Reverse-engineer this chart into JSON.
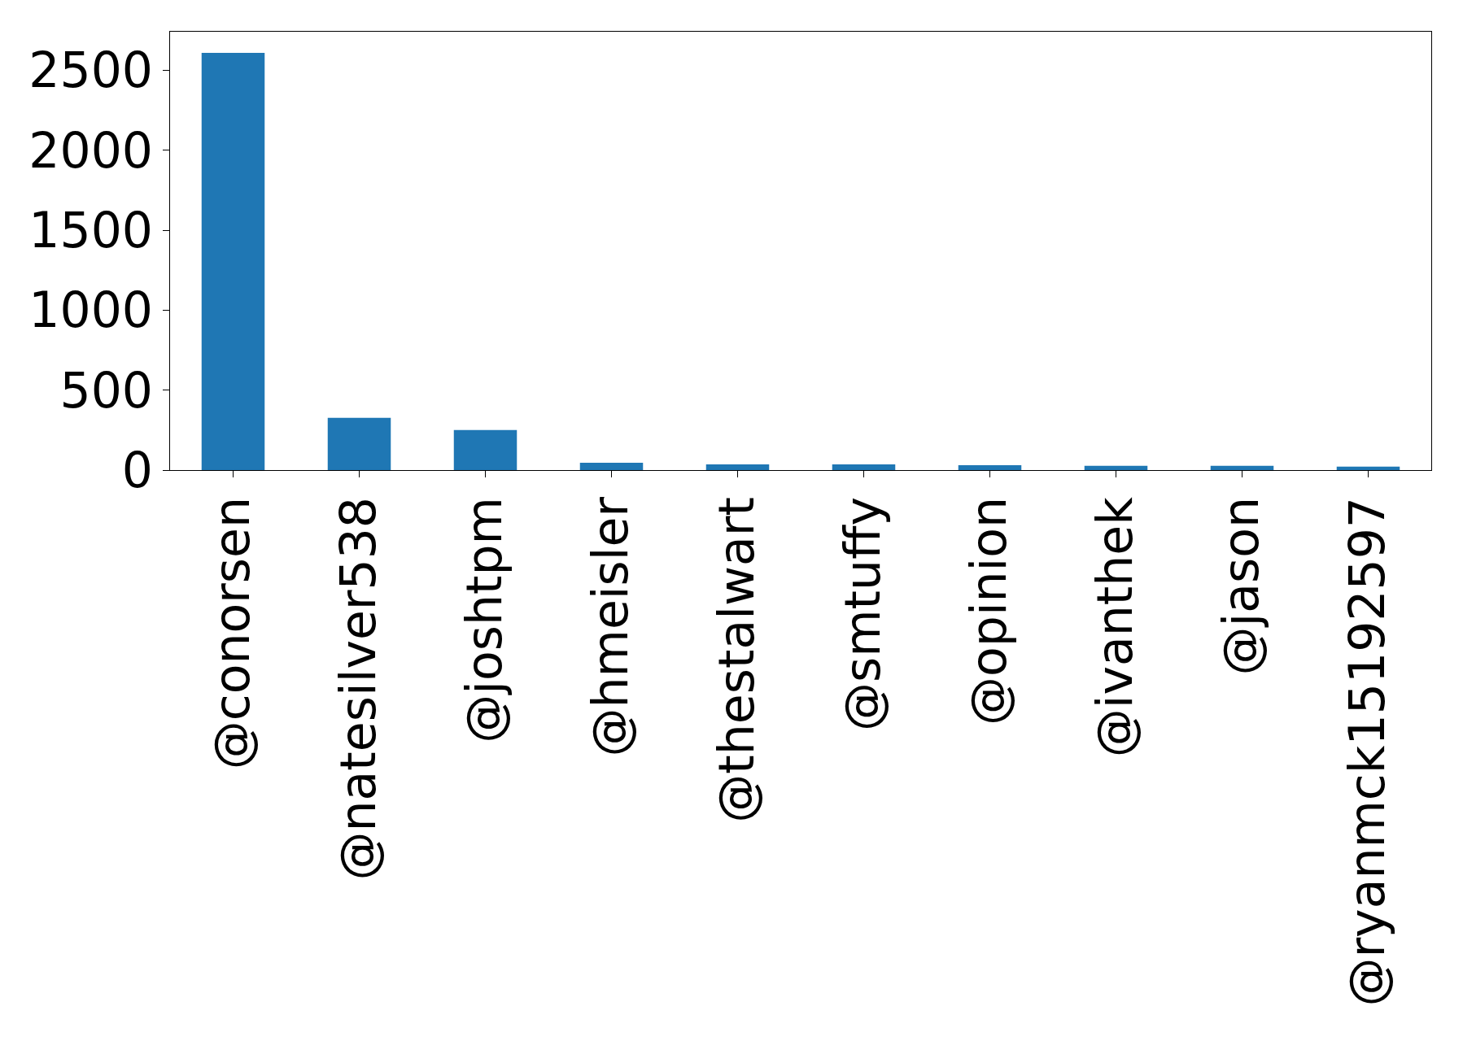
{
  "chart_data": {
    "type": "bar",
    "categories": [
      "@conorsen",
      "@natesilver538",
      "@joshtpm",
      "@hmeisler",
      "@thestalwart",
      "@smtuffy",
      "@opinion",
      "@ivanthek",
      "@jason",
      "@ryanmck15192597"
    ],
    "values": [
      2609,
      327,
      250,
      46,
      36,
      36,
      30,
      27,
      27,
      21
    ],
    "color": "#1f77b4",
    "ylim": [
      0,
      2741
    ],
    "yticks": [
      0,
      500,
      1000,
      1500,
      2000,
      2500
    ]
  }
}
